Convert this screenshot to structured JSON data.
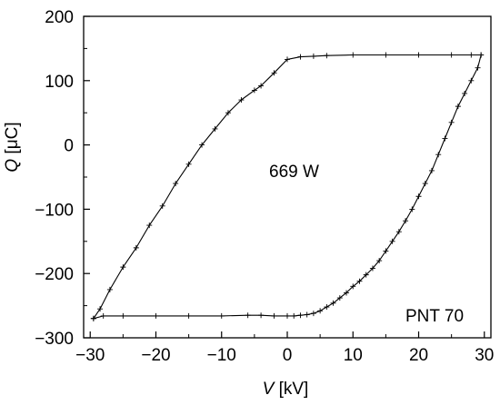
{
  "chart_data": {
    "type": "line",
    "xlim": [
      -31,
      31
    ],
    "ylim": [
      -300,
      200
    ],
    "xticks": [
      -30,
      -20,
      -10,
      0,
      10,
      20,
      30
    ],
    "xtick_labels": [
      "−30",
      "−20",
      "−10",
      "0",
      "10",
      "20",
      "30"
    ],
    "yticks": [
      -300,
      -200,
      -100,
      0,
      100,
      200
    ],
    "ytick_labels": [
      "−300",
      "−200",
      "−100",
      "0",
      "100",
      "200"
    ],
    "xlabel_var": "V",
    "xlabel_unit": " [kV]",
    "ylabel_var": "Q",
    "ylabel_unit": " [μC]",
    "annotations": [
      "669 W",
      "PNT 70"
    ],
    "grid": false,
    "series": [
      {
        "x": [
          -29.5,
          -28.5,
          -27,
          -25,
          -23,
          -21,
          -19,
          -17,
          -15,
          -13,
          -11,
          -9,
          -7,
          -5,
          -4,
          -2,
          0,
          2,
          4,
          6,
          10,
          15,
          20,
          25,
          28,
          29.5,
          29.5,
          29,
          28,
          27,
          26,
          25,
          24,
          23,
          22,
          21,
          20,
          19,
          18,
          17,
          16,
          15,
          14,
          13,
          12,
          11,
          10,
          9,
          8,
          7,
          6,
          5,
          4,
          3,
          2,
          1,
          0,
          -2,
          -4,
          -6,
          -10,
          -15,
          -20,
          -25,
          -28,
          -29.5
        ],
        "y": [
          -270,
          -255,
          -225,
          -190,
          -160,
          -125,
          -95,
          -60,
          -30,
          0,
          25,
          50,
          70,
          85,
          92,
          112,
          133,
          137,
          138,
          139,
          140,
          140,
          140,
          140,
          140,
          140,
          140,
          120,
          100,
          80,
          60,
          35,
          10,
          -15,
          -40,
          -60,
          -80,
          -100,
          -118,
          -135,
          -150,
          -165,
          -180,
          -192,
          -202,
          -212,
          -220,
          -230,
          -238,
          -246,
          -252,
          -258,
          -262,
          -264,
          -265,
          -266,
          -266,
          -266,
          -265,
          -265,
          -266,
          -266,
          -266,
          -266,
          -266,
          -270
        ]
      }
    ]
  }
}
